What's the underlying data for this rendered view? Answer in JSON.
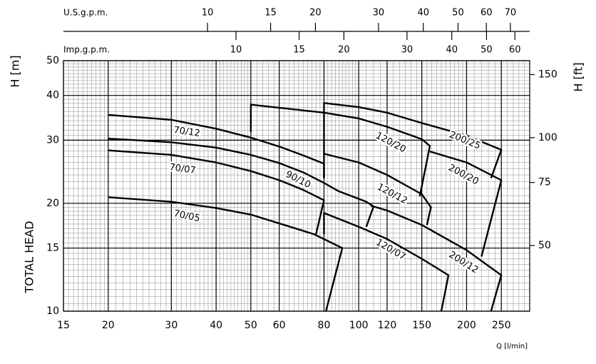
{
  "chart_data": {
    "type": "line",
    "x_label": "Q [l/min]",
    "y_label": "H [m]",
    "y_title": "TOTAL HEAD",
    "y2_label": "H [ft]",
    "log_x": true,
    "log_y": true,
    "grid": true,
    "xlim": [
      15,
      300
    ],
    "xticks": [
      15,
      20,
      30,
      40,
      50,
      60,
      80,
      100,
      120,
      150,
      200,
      250
    ],
    "ylim": [
      10,
      50
    ],
    "yticks": [
      10,
      15,
      20,
      30,
      40,
      50
    ],
    "y2lim": [
      32.8,
      164
    ],
    "y2ticks": [
      50,
      75,
      100,
      150
    ],
    "top_axes": [
      {
        "label": "U.S.g.p.m.",
        "lim": [
          3.963,
          79.25
        ],
        "ticks": [
          10,
          15,
          20,
          30,
          40,
          50,
          60,
          70
        ]
      },
      {
        "label": "Imp.g.p.m.",
        "lim": [
          3.3,
          65.99
        ],
        "ticks": [
          10,
          15,
          20,
          30,
          40,
          50,
          60
        ]
      }
    ],
    "series": [
      {
        "name": "70/12",
        "color": "#000000",
        "x": [
          20,
          30,
          40,
          50,
          60,
          70,
          80,
          80
        ],
        "values": [
          35.3,
          34.2,
          32.3,
          30.5,
          28.8,
          27.2,
          25.8,
          23.5
        ]
      },
      {
        "name": "90/10",
        "color": "#000000",
        "x": [
          20,
          30,
          40,
          50,
          60,
          70,
          80,
          88,
          105,
          110,
          105
        ],
        "values": [
          30.3,
          29.6,
          28.6,
          27.3,
          25.9,
          24.4,
          22.8,
          21.6,
          20.2,
          19.6,
          17.2
        ]
      },
      {
        "name": "70/07",
        "color": "#000000",
        "x": [
          20,
          30,
          40,
          50,
          60,
          70,
          80,
          76
        ],
        "values": [
          28.1,
          27.3,
          26.0,
          24.6,
          23.2,
          21.8,
          20.4,
          16.4
        ]
      },
      {
        "name": "70/05",
        "color": "#000000",
        "x": [
          20,
          30,
          40,
          50,
          62,
          75,
          90,
          81
        ],
        "values": [
          20.8,
          20.2,
          19.4,
          18.6,
          17.4,
          16.4,
          15.0,
          10
        ]
      },
      {
        "name": "120/20",
        "color": "#000000",
        "x": [
          50,
          50,
          80,
          100,
          120,
          150,
          158,
          148
        ],
        "values": [
          31.6,
          37.7,
          35.8,
          34.5,
          32.7,
          30.2,
          28.9,
          20.9
        ]
      },
      {
        "name": "120/12",
        "color": "#000000",
        "x": [
          80,
          80,
          100,
          120,
          150,
          159,
          155
        ],
        "values": [
          23.5,
          27.5,
          26.0,
          24.0,
          21.2,
          19.5,
          17.4
        ]
      },
      {
        "name": "120/07",
        "color": "#000000",
        "x": [
          80,
          80,
          100,
          120,
          150,
          178,
          170
        ],
        "values": [
          16.4,
          18.8,
          17.2,
          15.9,
          14.0,
          12.6,
          10
        ]
      },
      {
        "name": "200/25",
        "color": "#000000",
        "x": [
          80,
          80,
          100,
          120,
          150,
          200,
          250,
          234
        ],
        "values": [
          27.3,
          38.1,
          37.1,
          35.8,
          33.5,
          30.9,
          28.2,
          23.5
        ]
      },
      {
        "name": "200/20",
        "color": "#000000",
        "x": [
          158,
          200,
          250,
          220
        ],
        "values": [
          27.9,
          26.0,
          23.2,
          14.2
        ]
      },
      {
        "name": "200/12",
        "color": "#000000",
        "x": [
          108,
          120,
          150,
          200,
          250,
          234
        ],
        "values": [
          19.7,
          19.1,
          17.4,
          14.8,
          12.6,
          10
        ]
      }
    ]
  }
}
